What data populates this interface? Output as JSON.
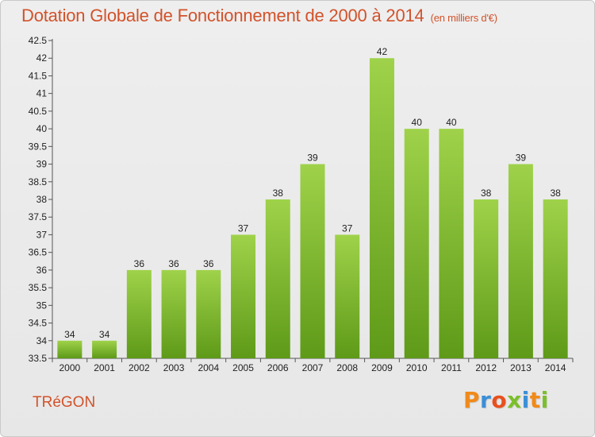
{
  "header": {
    "title": "Dotation Globale de Fonctionnement de 2000 à 2014",
    "subtitle": "(en milliers d'€)"
  },
  "footer": {
    "commune": "TRéGON",
    "logo_text": "Proxiti"
  },
  "colors": {
    "title": "#d2522a",
    "bar_top": "#9fd24a",
    "bar_bottom": "#5e9a18",
    "logo": [
      "#f08a1a",
      "#3b8fd6",
      "#e8501e",
      "#7bbf2a",
      "#3b8fd6",
      "#f08a1a",
      "#7bbf2a"
    ]
  },
  "chart_data": {
    "type": "bar",
    "title": "Dotation Globale de Fonctionnement de 2000 à 2014",
    "subtitle": "(en milliers d'€)",
    "categories": [
      "2000",
      "2001",
      "2002",
      "2003",
      "2004",
      "2005",
      "2006",
      "2007",
      "2008",
      "2009",
      "2010",
      "2011",
      "2012",
      "2013",
      "2014"
    ],
    "values": [
      34,
      34,
      36,
      36,
      36,
      37,
      38,
      39,
      37,
      42,
      40,
      40,
      38,
      39,
      38
    ],
    "ylim": [
      33.5,
      42.5
    ],
    "yticks": [
      "33.5",
      "34",
      "34.5",
      "35",
      "35.5",
      "36",
      "36.5",
      "37",
      "37.5",
      "38",
      "38.5",
      "39",
      "39.5",
      "40",
      "40.5",
      "41",
      "41.5",
      "42",
      "42.5"
    ],
    "xlabel": "",
    "ylabel": "",
    "grid": false,
    "legend": "none"
  }
}
